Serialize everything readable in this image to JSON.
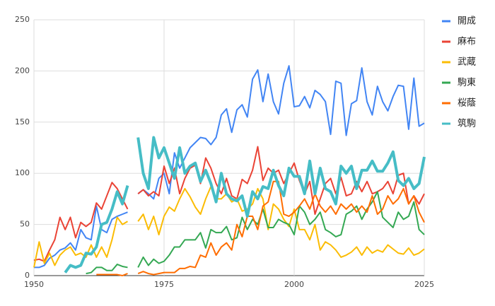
{
  "chart_data": {
    "type": "line",
    "x": [
      1950,
      1951,
      1952,
      1953,
      1954,
      1955,
      1956,
      1957,
      1958,
      1959,
      1960,
      1961,
      1962,
      1963,
      1964,
      1965,
      1966,
      1967,
      1968,
      1969,
      1970,
      1971,
      1972,
      1973,
      1974,
      1975,
      1976,
      1977,
      1978,
      1979,
      1980,
      1981,
      1982,
      1983,
      1984,
      1985,
      1986,
      1987,
      1988,
      1989,
      1990,
      1991,
      1992,
      1993,
      1994,
      1995,
      1996,
      1997,
      1998,
      1999,
      2000,
      2001,
      2002,
      2003,
      2004,
      2005,
      2006,
      2007,
      2008,
      2009,
      2010,
      2011,
      2012,
      2013,
      2014,
      2015,
      2016,
      2017,
      2018,
      2019,
      2020,
      2021,
      2022,
      2023,
      2024,
      2025
    ],
    "xlim": [
      1950,
      2025
    ],
    "xticks": [
      1950,
      1975,
      2000,
      2025
    ],
    "ylim": [
      0,
      250
    ],
    "yticks": [
      0,
      50,
      100,
      150,
      200,
      250
    ],
    "grid": true,
    "legend": "right",
    "series": [
      {
        "name": "開成",
        "color": "#4285f4",
        "line_width": 2,
        "values": [
          8,
          8,
          10,
          17,
          20,
          25,
          27,
          32,
          25,
          45,
          37,
          35,
          68,
          45,
          42,
          55,
          58,
          60,
          62,
          null,
          80,
          84,
          80,
          75,
          95,
          100,
          80,
          120,
          105,
          115,
          125,
          130,
          135,
          134,
          128,
          135,
          157,
          163,
          140,
          162,
          167,
          155,
          192,
          201,
          170,
          197,
          170,
          158,
          188,
          205,
          165,
          166,
          175,
          164,
          181,
          177,
          170,
          138,
          190,
          188,
          137,
          168,
          171,
          203,
          170,
          157,
          185,
          170,
          161,
          175,
          186,
          185,
          143,
          193,
          146,
          149
        ]
      },
      {
        "name": "麻布",
        "color": "#ea4335",
        "line_width": 2,
        "values": [
          15,
          16,
          14,
          25,
          35,
          57,
          45,
          57,
          37,
          52,
          48,
          52,
          71,
          65,
          78,
          91,
          85,
          75,
          65,
          null,
          80,
          84,
          78,
          82,
          78,
          107,
          90,
          105,
          80,
          95,
          105,
          108,
          90,
          115,
          105,
          90,
          80,
          95,
          78,
          75,
          94,
          90,
          103,
          126,
          93,
          105,
          100,
          103,
          90,
          100,
          110,
          93,
          80,
          92,
          60,
          75,
          90,
          95,
          80,
          96,
          78,
          80,
          92,
          82,
          92,
          80,
          82,
          85,
          92,
          80,
          98,
          100,
          70,
          78,
          70,
          80
        ]
      },
      {
        "name": "武蔵",
        "color": "#fbbc04",
        "line_width": 2,
        "values": [
          8,
          33,
          12,
          22,
          10,
          20,
          25,
          28,
          20,
          22,
          18,
          30,
          18,
          28,
          18,
          35,
          57,
          50,
          53,
          null,
          53,
          60,
          45,
          58,
          40,
          58,
          67,
          63,
          75,
          85,
          77,
          67,
          60,
          75,
          87,
          75,
          75,
          80,
          72,
          75,
          63,
          65,
          70,
          85,
          75,
          45,
          70,
          65,
          55,
          48,
          65,
          45,
          45,
          35,
          50,
          25,
          33,
          30,
          25,
          18,
          20,
          23,
          28,
          20,
          28,
          22,
          25,
          23,
          30,
          26,
          22,
          21,
          27,
          20,
          22,
          26
        ]
      },
      {
        "name": "駒東",
        "color": "#34a853",
        "line_width": 2,
        "values": [
          null,
          null,
          null,
          null,
          null,
          null,
          null,
          null,
          null,
          null,
          2,
          3,
          8,
          8,
          5,
          5,
          11,
          9,
          8,
          null,
          8,
          18,
          10,
          16,
          12,
          14,
          20,
          28,
          28,
          35,
          35,
          35,
          42,
          27,
          45,
          42,
          42,
          48,
          35,
          37,
          57,
          45,
          55,
          50,
          65,
          47,
          47,
          55,
          52,
          50,
          40,
          68,
          62,
          50,
          55,
          62,
          45,
          42,
          38,
          40,
          60,
          63,
          68,
          55,
          65,
          72,
          82,
          57,
          52,
          47,
          62,
          55,
          58,
          72,
          45,
          40
        ]
      },
      {
        "name": "桜蔭",
        "color": "#ff6d01",
        "line_width": 2,
        "values": [
          null,
          null,
          null,
          null,
          null,
          null,
          null,
          null,
          null,
          null,
          null,
          null,
          1,
          1,
          1,
          1,
          1,
          0,
          2,
          null,
          2,
          4,
          2,
          1,
          2,
          3,
          3,
          3,
          7,
          7,
          9,
          8,
          20,
          18,
          32,
          20,
          28,
          32,
          25,
          50,
          38,
          58,
          58,
          45,
          68,
          72,
          92,
          92,
          60,
          58,
          62,
          68,
          75,
          65,
          80,
          68,
          62,
          68,
          60,
          70,
          65,
          70,
          62,
          68,
          62,
          78,
          60,
          65,
          78,
          70,
          75,
          85,
          70,
          78,
          62,
          52
        ]
      },
      {
        "name": "筑駒",
        "color": "#46bdc6",
        "line_width": 4,
        "values": [
          null,
          null,
          null,
          null,
          null,
          null,
          3,
          10,
          8,
          10,
          22,
          21,
          28,
          50,
          52,
          65,
          82,
          70,
          88,
          null,
          135,
          100,
          85,
          135,
          115,
          125,
          110,
          95,
          125,
          100,
          107,
          110,
          92,
          103,
          90,
          72,
          100,
          80,
          75,
          73,
          78,
          58,
          82,
          75,
          87,
          85,
          103,
          88,
          78,
          105,
          97,
          97,
          80,
          112,
          80,
          105,
          85,
          82,
          70,
          107,
          100,
          107,
          85,
          103,
          103,
          112,
          102,
          102,
          110,
          121,
          93,
          88,
          95,
          85,
          90,
          116
        ]
      }
    ]
  }
}
